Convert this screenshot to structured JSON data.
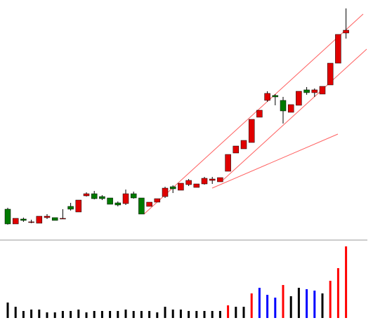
{
  "chart_data": {
    "type": "candlestick",
    "up_color": "#e00000",
    "down_color": "#007a00",
    "wick_color": "#000000",
    "ylim": [
      0,
      330
    ],
    "open": [
      32,
      11,
      18,
      13,
      12,
      20,
      20,
      19,
      36,
      28,
      51,
      54,
      50,
      48,
      41,
      40,
      54,
      48,
      36,
      42,
      50,
      64,
      59,
      67,
      63,
      68,
      73,
      71,
      86,
      112,
      118,
      127,
      163,
      187,
      194,
      187,
      170,
      180,
      202,
      198,
      196,
      209,
      240,
      283
    ],
    "high": [
      34,
      19,
      20,
      17,
      22,
      25,
      20,
      32,
      41,
      45,
      56,
      58,
      52,
      48,
      43,
      60,
      57,
      48,
      42,
      47,
      64,
      66,
      69,
      75,
      68,
      78,
      78,
      77,
      110,
      122,
      130,
      160,
      173,
      200,
      196,
      192,
      181,
      200,
      206,
      204,
      207,
      240,
      281,
      318
    ],
    "low": [
      10,
      11,
      14,
      12,
      12,
      18,
      16,
      18,
      30,
      28,
      50,
      46,
      45,
      39,
      36,
      38,
      47,
      25,
      36,
      42,
      48,
      55,
      59,
      65,
      63,
      67,
      68,
      71,
      86,
      112,
      118,
      127,
      163,
      185,
      180,
      154,
      170,
      180,
      195,
      192,
      196,
      209,
      240,
      275
    ],
    "close": [
      11,
      19,
      16,
      14,
      22,
      22,
      16,
      19,
      32,
      45,
      54,
      47,
      47,
      39,
      38,
      54,
      48,
      25,
      42,
      47,
      62,
      61,
      69,
      73,
      68,
      76,
      75,
      77,
      110,
      122,
      130,
      160,
      173,
      197,
      192,
      172,
      181,
      200,
      198,
      202,
      207,
      240,
      281,
      287
    ],
    "volume": {
      "type": "bar",
      "ylim": [
        0,
        110
      ],
      "values": [
        22,
        16,
        10,
        12,
        12,
        8,
        8,
        10,
        10,
        12,
        8,
        10,
        10,
        10,
        10,
        12,
        10,
        10,
        10,
        8,
        16,
        12,
        12,
        10,
        10,
        10,
        10,
        10,
        18,
        16,
        16,
        35,
        43,
        33,
        29,
        47,
        31,
        43,
        41,
        39,
        35,
        53,
        71,
        102
      ],
      "colors": [
        "#000000",
        "#000000",
        "#000000",
        "#000000",
        "#000000",
        "#000000",
        "#000000",
        "#000000",
        "#000000",
        "#000000",
        "#000000",
        "#000000",
        "#000000",
        "#000000",
        "#000000",
        "#000000",
        "#000000",
        "#000000",
        "#000000",
        "#000000",
        "#000000",
        "#000000",
        "#000000",
        "#000000",
        "#000000",
        "#000000",
        "#000000",
        "#000000",
        "#ff0000",
        "#000000",
        "#000000",
        "#ff0000",
        "#0000ff",
        "#0000ff",
        "#0000ff",
        "#ff0000",
        "#000000",
        "#000000",
        "#0000ff",
        "#0000ff",
        "#000000",
        "#ff0000",
        "#ff0000",
        "#ff0000"
      ]
    }
  }
}
